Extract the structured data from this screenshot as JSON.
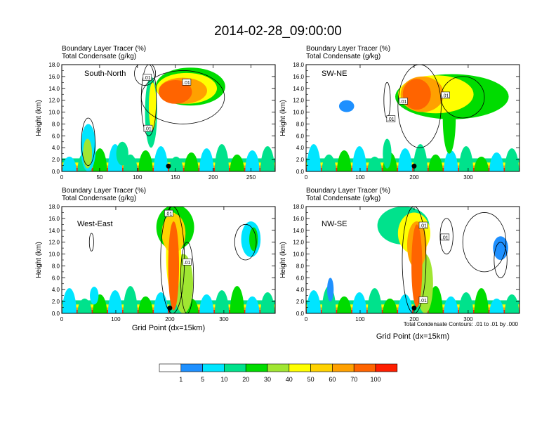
{
  "figure": {
    "title": "2014-02-28_09:00:00",
    "contour_note": "Total Condensate Contours: .01 to .01 by .000",
    "xlabel": "Grid Point (dx=15km)"
  },
  "colorbar": {
    "colors": [
      "#ffffff",
      "#1e90ff",
      "#00e5ff",
      "#00e28c",
      "#00dc00",
      "#a0e632",
      "#ffff00",
      "#ffd200",
      "#ffa000",
      "#ff6400",
      "#ff1e00"
    ],
    "labels": [
      "1",
      "5",
      "10",
      "20",
      "30",
      "40",
      "50",
      "60",
      "70",
      "100"
    ]
  },
  "chart_data": [
    {
      "type": "heatmap",
      "panel": "South-North",
      "label1": "Boundary Layer Tracer   (%)",
      "label2": "Total Condensate   (g/kg)",
      "ylabel": "Height (km)",
      "xlim": [
        0,
        282
      ],
      "ylim": [
        0,
        18
      ],
      "yticks": [
        "0.0",
        "2.0",
        "4.0",
        "6.0",
        "8.0",
        "10.0",
        "12.0",
        "14.0",
        "16.0",
        "18.0"
      ],
      "xticks": [
        {
          "v": 0,
          "t": "0"
        },
        {
          "v": 50,
          "t": "50"
        },
        {
          "v": 100,
          "t": "100"
        },
        {
          "v": 150,
          "t": "150"
        },
        {
          "v": 200,
          "t": "200"
        },
        {
          "v": 250,
          "t": "250"
        }
      ],
      "marker_x": 141,
      "contour_labels": [
        {
          "x": 113,
          "y": 15.8,
          "t": ".01"
        },
        {
          "x": 165,
          "y": 15.0,
          "t": ".01"
        },
        {
          "x": 114,
          "y": 7.2,
          "t": ".01"
        }
      ],
      "blobs": [
        {
          "x": 170,
          "y": 14.3,
          "rx": 46,
          "ry": 3.2,
          "l": 4
        },
        {
          "x": 165,
          "y": 14.0,
          "rx": 40,
          "ry": 2.6,
          "l": 6
        },
        {
          "x": 160,
          "y": 13.6,
          "rx": 32,
          "ry": 2.2,
          "l": 8
        },
        {
          "x": 150,
          "y": 13.4,
          "rx": 22,
          "ry": 2.0,
          "l": 9
        },
        {
          "x": 118,
          "y": 10,
          "rx": 8,
          "ry": 6,
          "l": 3
        },
        {
          "x": 120,
          "y": 11,
          "rx": 5,
          "ry": 4,
          "l": 6
        },
        {
          "x": 35,
          "y": 4,
          "rx": 10,
          "ry": 4,
          "l": 2
        },
        {
          "x": 34,
          "y": 3,
          "rx": 6,
          "ry": 2.5,
          "l": 5
        },
        {
          "x": 80,
          "y": 3,
          "rx": 8,
          "ry": 2,
          "l": 3
        }
      ],
      "contours": [
        {
          "x": 160,
          "y": 12.5,
          "rx": 55,
          "ry": 4.5
        },
        {
          "x": 115,
          "y": 12,
          "rx": 10,
          "ry": 6
        },
        {
          "x": 110,
          "y": 16.5,
          "rx": 14,
          "ry": 2
        },
        {
          "x": 35,
          "y": 5,
          "rx": 9,
          "ry": 4
        }
      ]
    },
    {
      "type": "heatmap",
      "panel": "SW-NE",
      "label1": "Boundary Layer Tracer   (%)",
      "label2": "Total Condensate   (g/kg)",
      "ylabel": "Height (km)",
      "xlim": [
        0,
        395
      ],
      "ylim": [
        0,
        18
      ],
      "yticks": [
        "0.0",
        "2.0",
        "4.0",
        "6.0",
        "8.0",
        "10.0",
        "12.0",
        "14.0",
        "16.0",
        "18.0"
      ],
      "xticks": [
        {
          "v": 0,
          "t": "0"
        },
        {
          "v": 100,
          "t": "100"
        },
        {
          "v": 200,
          "t": "200"
        },
        {
          "v": 300,
          "t": "300"
        }
      ],
      "marker_x": 200,
      "contour_labels": [
        {
          "x": 258,
          "y": 12.8,
          "t": ".01"
        },
        {
          "x": 180,
          "y": 11.8,
          "t": ".01"
        },
        {
          "x": 157,
          "y": 8.8,
          "t": ".01"
        }
      ],
      "blobs": [
        {
          "x": 270,
          "y": 12.6,
          "rx": 105,
          "ry": 3.8,
          "l": 4
        },
        {
          "x": 240,
          "y": 13.0,
          "rx": 70,
          "ry": 3.2,
          "l": 6
        },
        {
          "x": 215,
          "y": 13.0,
          "rx": 40,
          "ry": 3.0,
          "l": 8
        },
        {
          "x": 205,
          "y": 13.0,
          "rx": 26,
          "ry": 2.6,
          "l": 9
        },
        {
          "x": 265,
          "y": 9,
          "rx": 12,
          "ry": 6,
          "l": 4
        },
        {
          "x": 75,
          "y": 11,
          "rx": 14,
          "ry": 1,
          "l": 1
        },
        {
          "x": 150,
          "y": 3,
          "rx": 8,
          "ry": 2.5,
          "l": 3
        }
      ],
      "contours": [
        {
          "x": 210,
          "y": 11,
          "rx": 40,
          "ry": 7
        },
        {
          "x": 290,
          "y": 12.5,
          "rx": 40,
          "ry": 3.5
        },
        {
          "x": 150,
          "y": 12,
          "rx": 6,
          "ry": 3
        }
      ]
    },
    {
      "type": "heatmap",
      "panel": "West-East",
      "label1": "Boundary Layer Tracer   (%)",
      "label2": "Total Condensate   (g/kg)",
      "ylabel": "Height (km)",
      "xlim": [
        0,
        395
      ],
      "ylim": [
        0,
        18
      ],
      "yticks": [
        "0.0",
        "2.0",
        "4.0",
        "6.0",
        "8.0",
        "10.0",
        "12.0",
        "14.0",
        "16.0",
        "18.0"
      ],
      "xticks": [
        {
          "v": 0,
          "t": "0"
        },
        {
          "v": 100,
          "t": "100"
        },
        {
          "v": 200,
          "t": "200"
        },
        {
          "v": 300,
          "t": "300"
        }
      ],
      "marker_x": 200,
      "contour_labels": [
        {
          "x": 198,
          "y": 16.8,
          "t": ".01"
        },
        {
          "x": 232,
          "y": 8.6,
          "t": ".01"
        }
      ],
      "blobs": [
        {
          "x": 210,
          "y": 14.5,
          "rx": 35,
          "ry": 3.8,
          "l": 4
        },
        {
          "x": 207,
          "y": 13.5,
          "rx": 22,
          "ry": 3.3,
          "l": 7
        },
        {
          "x": 207,
          "y": 10,
          "rx": 14,
          "ry": 7,
          "l": 6
        },
        {
          "x": 207,
          "y": 8,
          "rx": 10,
          "ry": 7.5,
          "l": 9
        },
        {
          "x": 225,
          "y": 5,
          "rx": 18,
          "ry": 5,
          "l": 5
        },
        {
          "x": 350,
          "y": 12.5,
          "rx": 18,
          "ry": 3,
          "l": 2
        },
        {
          "x": 355,
          "y": 12.5,
          "rx": 8,
          "ry": 2,
          "l": 4
        },
        {
          "x": 60,
          "y": 3,
          "rx": 8,
          "ry": 1.5,
          "l": 2
        }
      ],
      "contours": [
        {
          "x": 205,
          "y": 9,
          "rx": 22,
          "ry": 9
        },
        {
          "x": 232,
          "y": 6,
          "rx": 12,
          "ry": 6
        },
        {
          "x": 55,
          "y": 12,
          "rx": 4,
          "ry": 1.5
        },
        {
          "x": 340,
          "y": 12,
          "rx": 20,
          "ry": 3
        }
      ]
    },
    {
      "type": "heatmap",
      "panel": "NW-SE",
      "label1": "Boundary Layer Tracer   (%)",
      "label2": "Total Condensate   (g/kg)",
      "ylabel": "Height (km)",
      "xlim": [
        0,
        395
      ],
      "ylim": [
        0,
        18
      ],
      "yticks": [
        "0.0",
        "2.0",
        "4.0",
        "6.0",
        "8.0",
        "10.0",
        "12.0",
        "14.0",
        "16.0",
        "18.0"
      ],
      "xticks": [
        {
          "v": 0,
          "t": "0"
        },
        {
          "v": 100,
          "t": "100"
        },
        {
          "v": 200,
          "t": "200"
        },
        {
          "v": 300,
          "t": "300"
        }
      ],
      "marker_x": 200,
      "contour_labels": [
        {
          "x": 217,
          "y": 14.8,
          "t": ".01"
        },
        {
          "x": 257,
          "y": 12.8,
          "t": ".01"
        },
        {
          "x": 217,
          "y": 2.2,
          "t": ".01"
        }
      ],
      "blobs": [
        {
          "x": 180,
          "y": 14.8,
          "rx": 48,
          "ry": 3.2,
          "l": 3
        },
        {
          "x": 200,
          "y": 13.5,
          "rx": 30,
          "ry": 3.5,
          "l": 6
        },
        {
          "x": 205,
          "y": 11.5,
          "rx": 18,
          "ry": 4,
          "l": 8
        },
        {
          "x": 205,
          "y": 8,
          "rx": 10,
          "ry": 7,
          "l": 9
        },
        {
          "x": 220,
          "y": 5,
          "rx": 15,
          "ry": 5,
          "l": 5
        },
        {
          "x": 360,
          "y": 11,
          "rx": 14,
          "ry": 2,
          "l": 1
        },
        {
          "x": 45,
          "y": 4,
          "rx": 6,
          "ry": 2,
          "l": 1
        }
      ],
      "contours": [
        {
          "x": 200,
          "y": 9,
          "rx": 22,
          "ry": 9
        },
        {
          "x": 260,
          "y": 13,
          "rx": 12,
          "ry": 3
        },
        {
          "x": 330,
          "y": 12,
          "rx": 40,
          "ry": 5
        },
        {
          "x": 360,
          "y": 9,
          "rx": 12,
          "ry": 3
        }
      ]
    }
  ]
}
